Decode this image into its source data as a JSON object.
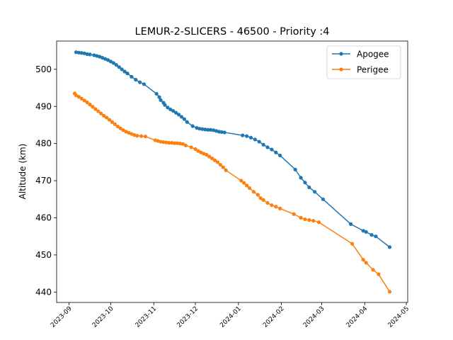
{
  "chart_data": {
    "type": "line",
    "title": "LEMUR-2-SLICERS - 46500 - Priority :4",
    "xlabel": "",
    "ylabel": "Altitude (km)",
    "x_axis": "date",
    "xlim": [
      "2023-08-23",
      "2024-05-02"
    ],
    "ylim": [
      437.2,
      507.6
    ],
    "x_ticks": [
      "2023-09",
      "2023-10",
      "2023-11",
      "2023-12",
      "2024-01",
      "2024-02",
      "2024-03",
      "2024-04",
      "2024-05"
    ],
    "x_tick_dates": [
      "2023-09-01",
      "2023-10-01",
      "2023-11-01",
      "2023-12-01",
      "2024-01-01",
      "2024-02-01",
      "2024-03-01",
      "2024-04-01",
      "2024-05-01"
    ],
    "y_ticks": [
      440,
      450,
      460,
      470,
      480,
      490,
      500
    ],
    "legend_position": "upper right",
    "grid": false,
    "series": [
      {
        "name": "Apogee",
        "color": "#1f77b4",
        "marker": "circle",
        "x": [
          "2023-09-06",
          "2023-09-08",
          "2023-09-10",
          "2023-09-12",
          "2023-09-14",
          "2023-09-16",
          "2023-09-19",
          "2023-09-21",
          "2023-09-23",
          "2023-09-25",
          "2023-09-27",
          "2023-09-29",
          "2023-10-01",
          "2023-10-03",
          "2023-10-05",
          "2023-10-07",
          "2023-10-09",
          "2023-10-11",
          "2023-10-13",
          "2023-10-16",
          "2023-10-19",
          "2023-10-22",
          "2023-10-25",
          "2023-11-03",
          "2023-11-05",
          "2023-11-06",
          "2023-11-08",
          "2023-11-09",
          "2023-11-11",
          "2023-11-13",
          "2023-11-15",
          "2023-11-17",
          "2023-11-19",
          "2023-11-21",
          "2023-11-23",
          "2023-11-25",
          "2023-11-29",
          "2023-12-02",
          "2023-12-04",
          "2023-12-06",
          "2023-12-08",
          "2023-12-10",
          "2023-12-12",
          "2023-12-14",
          "2023-12-16",
          "2023-12-18",
          "2023-12-20",
          "2023-12-22",
          "2024-01-04",
          "2024-01-07",
          "2024-01-10",
          "2024-01-13",
          "2024-01-16",
          "2024-01-19",
          "2024-01-22",
          "2024-01-25",
          "2024-01-28",
          "2024-01-31",
          "2024-02-11",
          "2024-02-15",
          "2024-02-18",
          "2024-02-21",
          "2024-02-25",
          "2024-03-02",
          "2024-03-22",
          "2024-03-31",
          "2024-04-02",
          "2024-04-06",
          "2024-04-09",
          "2024-04-19"
        ],
        "y": [
          504.6,
          504.5,
          504.4,
          504.3,
          504.1,
          504.0,
          503.8,
          503.6,
          503.4,
          503.1,
          502.8,
          502.5,
          502.1,
          501.7,
          501.2,
          500.6,
          500.0,
          499.4,
          498.9,
          498.0,
          497.2,
          496.5,
          496.0,
          493.4,
          492.5,
          491.7,
          491.0,
          490.4,
          489.7,
          489.2,
          488.8,
          488.3,
          487.8,
          487.2,
          486.6,
          485.8,
          484.7,
          484.2,
          484.0,
          483.9,
          483.8,
          483.7,
          483.7,
          483.6,
          483.4,
          483.2,
          483.1,
          483.0,
          482.2,
          482.0,
          481.6,
          481.1,
          480.5,
          479.7,
          479.0,
          478.4,
          477.6,
          476.8,
          473.0,
          470.8,
          469.5,
          468.2,
          467.0,
          465.0,
          458.3,
          456.5,
          456.2,
          455.4,
          455.0,
          452.1
        ]
      },
      {
        "name": "Perigee",
        "color": "#ff7f0e",
        "marker": "circle",
        "x": [
          "2023-09-05",
          "2023-09-06",
          "2023-09-08",
          "2023-09-10",
          "2023-09-12",
          "2023-09-14",
          "2023-09-16",
          "2023-09-18",
          "2023-09-20",
          "2023-09-22",
          "2023-09-24",
          "2023-09-26",
          "2023-09-28",
          "2023-09-30",
          "2023-10-02",
          "2023-10-04",
          "2023-10-06",
          "2023-10-08",
          "2023-10-10",
          "2023-10-12",
          "2023-10-14",
          "2023-10-16",
          "2023-10-18",
          "2023-10-20",
          "2023-10-23",
          "2023-10-26",
          "2023-11-02",
          "2023-11-04",
          "2023-11-06",
          "2023-11-08",
          "2023-11-10",
          "2023-11-12",
          "2023-11-14",
          "2023-11-16",
          "2023-11-18",
          "2023-11-20",
          "2023-11-22",
          "2023-11-24",
          "2023-11-28",
          "2023-12-01",
          "2023-12-03",
          "2023-12-05",
          "2023-12-07",
          "2023-12-09",
          "2023-12-11",
          "2023-12-13",
          "2023-12-15",
          "2023-12-17",
          "2023-12-19",
          "2023-12-21",
          "2023-12-23",
          "2024-01-03",
          "2024-01-05",
          "2024-01-07",
          "2024-01-09",
          "2024-01-12",
          "2024-01-15",
          "2024-01-17",
          "2024-01-19",
          "2024-01-22",
          "2024-01-25",
          "2024-01-28",
          "2024-01-31",
          "2024-02-10",
          "2024-02-15",
          "2024-02-18",
          "2024-02-21",
          "2024-02-24",
          "2024-02-28",
          "2024-03-23",
          "2024-03-31",
          "2024-04-02",
          "2024-04-07",
          "2024-04-11",
          "2024-04-19"
        ],
        "y": [
          493.5,
          493.0,
          492.6,
          492.1,
          491.6,
          491.1,
          490.5,
          489.9,
          489.3,
          488.7,
          488.1,
          487.5,
          487.0,
          486.4,
          485.8,
          485.2,
          484.6,
          484.1,
          483.6,
          483.2,
          482.9,
          482.6,
          482.3,
          482.1,
          482.0,
          481.9,
          480.9,
          480.7,
          480.5,
          480.4,
          480.3,
          480.2,
          480.2,
          480.1,
          480.1,
          480.0,
          479.9,
          479.5,
          479.0,
          478.5,
          478.0,
          477.6,
          477.3,
          477.0,
          476.5,
          476.0,
          475.5,
          475.0,
          474.3,
          473.6,
          472.8,
          470.0,
          469.4,
          468.7,
          468.0,
          467.0,
          466.2,
          465.3,
          464.8,
          464.0,
          463.4,
          463.0,
          462.5,
          461.0,
          460.0,
          459.6,
          459.4,
          459.2,
          458.8,
          453.0,
          448.7,
          447.9,
          446.0,
          444.8,
          440.1
        ]
      }
    ]
  }
}
